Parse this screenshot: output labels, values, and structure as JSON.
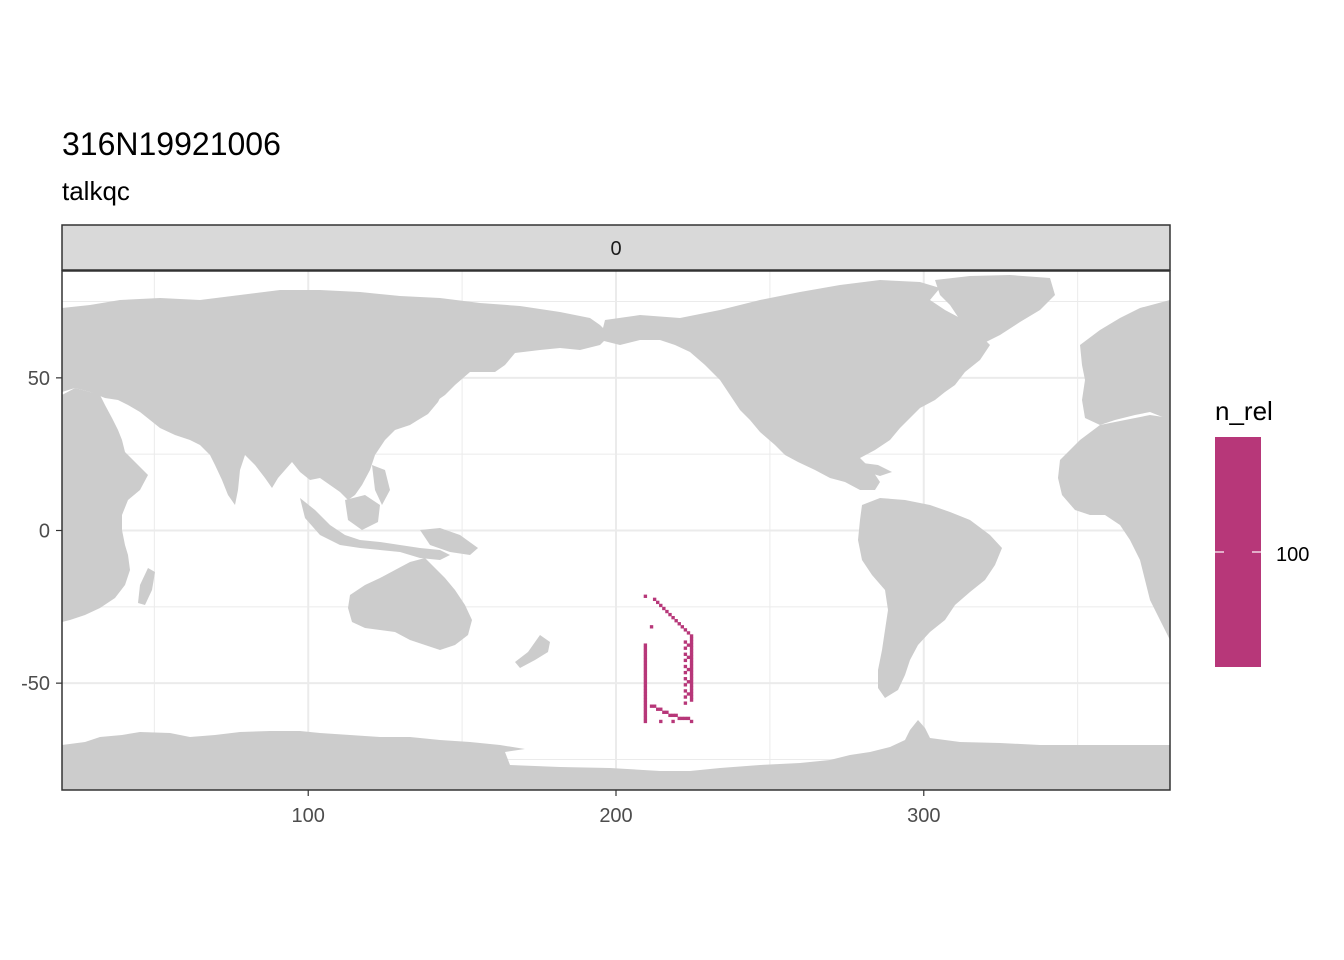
{
  "title": "316N19921006",
  "subtitle": "talkqc",
  "facet_label": "0",
  "colors": {
    "land": "#cccccc",
    "panel_background": "#ffffff",
    "grid": "#ebebeb",
    "panel_border": "#333333",
    "strip_fill": "#d9d9d9",
    "data": "#b73779"
  },
  "chart_data": {
    "type": "heatmap",
    "title": "316N19921006",
    "subtitle": "talkqc",
    "facet": "0",
    "xlim": [
      20,
      380
    ],
    "ylim": [
      -85,
      85
    ],
    "x_ticks": [
      100,
      200,
      300
    ],
    "x_tick_labels": [
      "100",
      "200",
      "300"
    ],
    "y_ticks": [
      -50,
      0,
      50
    ],
    "y_tick_labels": [
      "-50",
      "0",
      "50"
    ],
    "xlabel": "",
    "ylabel": "",
    "grid": true,
    "legend": {
      "title": "n_rel",
      "position": "right",
      "tick_labels": [
        "100"
      ],
      "color": "#b73779"
    },
    "cells": [
      {
        "x": 209.5,
        "y": -21.5
      },
      {
        "x": 212.5,
        "y": -22.5
      },
      {
        "x": 213.5,
        "y": -23.5
      },
      {
        "x": 214.5,
        "y": -24.5
      },
      {
        "x": 215.5,
        "y": -25.5
      },
      {
        "x": 216.5,
        "y": -26.5
      },
      {
        "x": 217.5,
        "y": -27.5
      },
      {
        "x": 218.5,
        "y": -28.5
      },
      {
        "x": 219.5,
        "y": -29.5
      },
      {
        "x": 220.5,
        "y": -30.5
      },
      {
        "x": 221.5,
        "y": -31.5
      },
      {
        "x": 222.5,
        "y": -32.5
      },
      {
        "x": 223.5,
        "y": -33.5
      },
      {
        "x": 224.5,
        "y": -34.5
      },
      {
        "x": 224.5,
        "y": -35.5
      },
      {
        "x": 224.5,
        "y": -36.5
      },
      {
        "x": 224.5,
        "y": -37.5
      },
      {
        "x": 224.5,
        "y": -38.5
      },
      {
        "x": 224.5,
        "y": -39.5
      },
      {
        "x": 224.5,
        "y": -40.5
      },
      {
        "x": 224.5,
        "y": -41.5
      },
      {
        "x": 224.5,
        "y": -42.5
      },
      {
        "x": 224.5,
        "y": -43.5
      },
      {
        "x": 224.5,
        "y": -44.5
      },
      {
        "x": 224.5,
        "y": -45.5
      },
      {
        "x": 224.5,
        "y": -46.5
      },
      {
        "x": 224.5,
        "y": -47.5
      },
      {
        "x": 224.5,
        "y": -48.5
      },
      {
        "x": 224.5,
        "y": -49.5
      },
      {
        "x": 224.5,
        "y": -50.5
      },
      {
        "x": 224.5,
        "y": -51.5
      },
      {
        "x": 224.5,
        "y": -52.5
      },
      {
        "x": 224.5,
        "y": -53.5
      },
      {
        "x": 224.5,
        "y": -54.5
      },
      {
        "x": 224.5,
        "y": -55.5
      },
      {
        "x": 222.5,
        "y": -36.5
      },
      {
        "x": 222.5,
        "y": -38.5
      },
      {
        "x": 222.5,
        "y": -40.5
      },
      {
        "x": 222.5,
        "y": -42.5
      },
      {
        "x": 222.5,
        "y": -44.5
      },
      {
        "x": 222.5,
        "y": -46.5
      },
      {
        "x": 222.5,
        "y": -48.5
      },
      {
        "x": 222.5,
        "y": -50.5
      },
      {
        "x": 222.5,
        "y": -52.5
      },
      {
        "x": 222.5,
        "y": -54.5
      },
      {
        "x": 223.5,
        "y": -37.5
      },
      {
        "x": 223.5,
        "y": -41.5
      },
      {
        "x": 223.5,
        "y": -45.5
      },
      {
        "x": 223.5,
        "y": -49.5
      },
      {
        "x": 223.5,
        "y": -53.5
      },
      {
        "x": 222.5,
        "y": -56.5
      },
      {
        "x": 211.5,
        "y": -31.5
      },
      {
        "x": 209.5,
        "y": -37.5
      },
      {
        "x": 209.5,
        "y": -38.5
      },
      {
        "x": 209.5,
        "y": -39.5
      },
      {
        "x": 209.5,
        "y": -40.5
      },
      {
        "x": 209.5,
        "y": -41.5
      },
      {
        "x": 209.5,
        "y": -42.5
      },
      {
        "x": 209.5,
        "y": -43.5
      },
      {
        "x": 209.5,
        "y": -44.5
      },
      {
        "x": 209.5,
        "y": -45.5
      },
      {
        "x": 209.5,
        "y": -46.5
      },
      {
        "x": 209.5,
        "y": -47.5
      },
      {
        "x": 209.5,
        "y": -48.5
      },
      {
        "x": 209.5,
        "y": -49.5
      },
      {
        "x": 209.5,
        "y": -50.5
      },
      {
        "x": 209.5,
        "y": -51.5
      },
      {
        "x": 209.5,
        "y": -52.5
      },
      {
        "x": 209.5,
        "y": -53.5
      },
      {
        "x": 209.5,
        "y": -54.5
      },
      {
        "x": 209.5,
        "y": -55.5
      },
      {
        "x": 209.5,
        "y": -56.5
      },
      {
        "x": 209.5,
        "y": -57.5
      },
      {
        "x": 209.5,
        "y": -58.5
      },
      {
        "x": 209.5,
        "y": -59.5
      },
      {
        "x": 209.5,
        "y": -60.5
      },
      {
        "x": 209.5,
        "y": -61.5
      },
      {
        "x": 209.5,
        "y": -62.5
      },
      {
        "x": 211.5,
        "y": -57.5
      },
      {
        "x": 212.5,
        "y": -57.5
      },
      {
        "x": 213.5,
        "y": -58.5
      },
      {
        "x": 214.5,
        "y": -58.5
      },
      {
        "x": 215.5,
        "y": -59.5
      },
      {
        "x": 216.5,
        "y": -59.5
      },
      {
        "x": 217.5,
        "y": -60.5
      },
      {
        "x": 218.5,
        "y": -60.5
      },
      {
        "x": 219.5,
        "y": -60.5
      },
      {
        "x": 220.5,
        "y": -61.5
      },
      {
        "x": 221.5,
        "y": -61.5
      },
      {
        "x": 222.5,
        "y": -61.5
      },
      {
        "x": 223.5,
        "y": -61.5
      },
      {
        "x": 224.5,
        "y": -62.5
      },
      {
        "x": 214.5,
        "y": -62.5
      },
      {
        "x": 218.5,
        "y": -62.5
      }
    ]
  }
}
